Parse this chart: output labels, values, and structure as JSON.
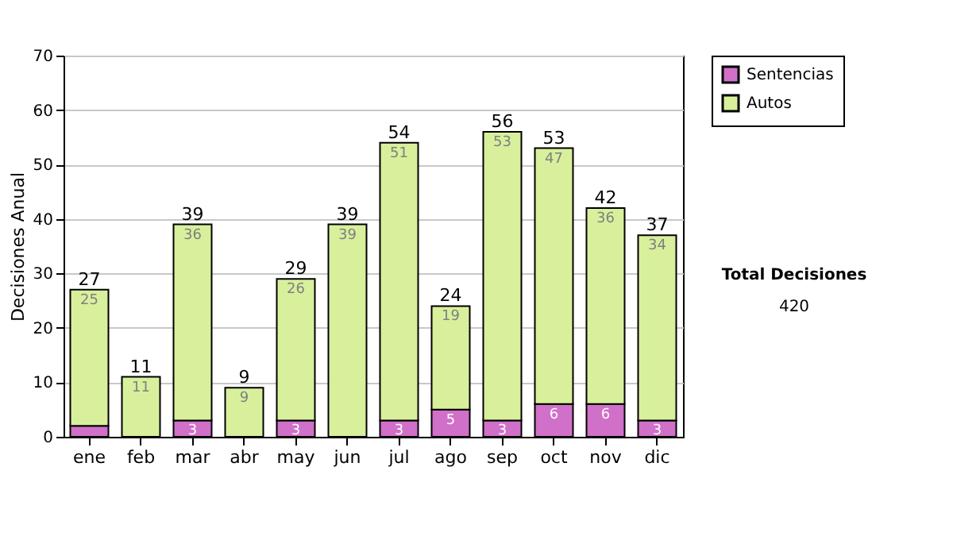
{
  "chart_data": {
    "type": "bar",
    "ylabel": "Decisiones Anual",
    "categories": [
      "ene",
      "feb",
      "mar",
      "abr",
      "may",
      "jun",
      "jul",
      "ago",
      "sep",
      "oct",
      "nov",
      "dic"
    ],
    "stacked": true,
    "series": [
      {
        "name": "Sentencias",
        "color": "#d070c8",
        "values": [
          2,
          0,
          3,
          0,
          3,
          0,
          3,
          5,
          3,
          6,
          6,
          3
        ],
        "value_labels": [
          null,
          null,
          "3",
          null,
          "3",
          null,
          "3",
          "5",
          "3",
          "6",
          "6",
          "3"
        ]
      },
      {
        "name": "Autos",
        "color": "#d8f09c",
        "values": [
          25,
          11,
          36,
          9,
          26,
          39,
          51,
          19,
          53,
          47,
          36,
          34
        ],
        "value_labels": [
          "25",
          "11",
          "36",
          "9",
          "26",
          "39",
          "51",
          "19",
          "53",
          "47",
          "36",
          "34"
        ]
      }
    ],
    "totals": [
      "27",
      "11",
      "39",
      "9",
      "29",
      "39",
      "54",
      "24",
      "56",
      "53",
      "42",
      "37"
    ],
    "ylim": [
      0,
      70
    ],
    "yticks": [
      0,
      10,
      20,
      30,
      40,
      50,
      60,
      70
    ],
    "grid": "y",
    "legend": "right",
    "annotations": [
      "Total Decisiones",
      "420"
    ]
  }
}
